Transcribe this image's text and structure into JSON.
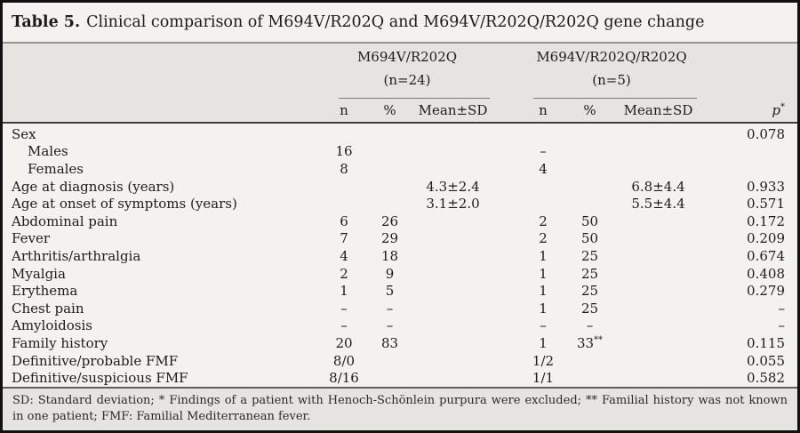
{
  "title": {
    "label": "Table 5.",
    "text": "Clinical comparison of M694V/R202Q and M694V/R202Q/R202Q gene change"
  },
  "header": {
    "group1": {
      "name": "M694V/R202Q",
      "count": "(n=24)",
      "cols": [
        "n",
        "%",
        "Mean±SD"
      ]
    },
    "group2": {
      "name": "M694V/R202Q/R202Q",
      "count": "(n=5)",
      "cols": [
        "n",
        "%",
        "Mean±SD"
      ]
    },
    "p_label": "p",
    "p_sup": "*"
  },
  "rows": [
    {
      "label": "Sex",
      "p": "0.078"
    },
    {
      "label": "Males",
      "n1": "16",
      "n2": "–"
    },
    {
      "label": "Females",
      "n1": "8",
      "n2": "4"
    },
    {
      "label": "Age at diagnosis (years)",
      "mean1": "4.3±2.4",
      "mean2": "6.8±4.4",
      "p": "0.933"
    },
    {
      "label": "Age at onset of symptoms (years)",
      "mean1": "3.1±2.0",
      "mean2": "5.5±4.4",
      "p": "0.571"
    },
    {
      "label": "Abdominal pain",
      "n1": "6",
      "pct1": "26",
      "n2": "2",
      "pct2": "50",
      "p": "0.172"
    },
    {
      "label": "Fever",
      "n1": "7",
      "pct1": "29",
      "n2": "2",
      "pct2": "50",
      "p": "0.209"
    },
    {
      "label": "Arthritis/arthralgia",
      "n1": "4",
      "pct1": "18",
      "n2": "1",
      "pct2": "25",
      "p": "0.674"
    },
    {
      "label": "Myalgia",
      "n1": "2",
      "pct1": "9",
      "n2": "1",
      "pct2": "25",
      "p": "0.408"
    },
    {
      "label": "Erythema",
      "n1": "1",
      "pct1": "5",
      "n2": "1",
      "pct2": "25",
      "p": "0.279"
    },
    {
      "label": "Chest pain",
      "n1": "–",
      "pct1": "–",
      "n2": "1",
      "pct2": "25",
      "p": "–"
    },
    {
      "label": "Amyloidosis",
      "n1": "–",
      "pct1": "–",
      "n2": "–",
      "pct2": "–",
      "p": "–"
    },
    {
      "label": "Family history",
      "n1": "20",
      "pct1": "83",
      "n2": "1",
      "pct2": "33",
      "pct2_sup": "**",
      "p": "0.115"
    },
    {
      "label": "Definitive/probable FMF",
      "n1": "8/0",
      "n2": "1/2",
      "p": "0.055"
    },
    {
      "label": "Definitive/suspicious FMF",
      "n1": "8/16",
      "n2": "1/1",
      "p": "0.582"
    }
  ],
  "footnote": "SD: Standard deviation; * Findings of a patient with Henoch-Schönlein purpura were excluded; ** Familial history was not known in one patient; FMF: Familial Mediterranean fever."
}
